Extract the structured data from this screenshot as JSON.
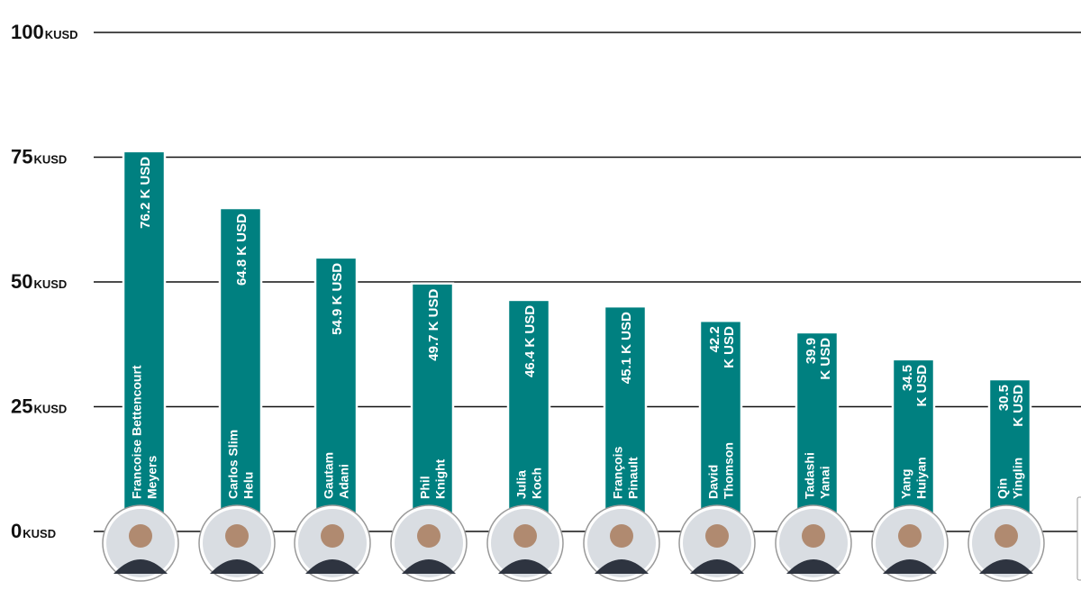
{
  "chart_data": {
    "type": "bar",
    "categories": [
      "Francoise Bettencourt Meyers",
      "Carlos Slim Helu",
      "Gautam Adani",
      "Phil Knight",
      "Julia Koch",
      "François Pinault",
      "David Thomson",
      "Tadashi Yanai",
      "Yang Huiyan",
      "Qin Yinglin"
    ],
    "name_lines": [
      [
        "Francoise Bettencourt",
        "Meyers"
      ],
      [
        "Carlos Slim",
        "Helu"
      ],
      [
        "Gautam",
        "Adani"
      ],
      [
        "Phil",
        "Knight"
      ],
      [
        "Julia",
        "Koch"
      ],
      [
        "François",
        "Pinault"
      ],
      [
        "David",
        "Thomson"
      ],
      [
        "Tadashi",
        "Yanai"
      ],
      [
        "Yang",
        "Huiyan"
      ],
      [
        "Qin",
        "Yinglin"
      ]
    ],
    "values": [
      76.2,
      64.8,
      54.9,
      49.7,
      46.4,
      45.1,
      42.2,
      39.9,
      34.5,
      30.5
    ],
    "value_labels": [
      [
        "76.2 K USD"
      ],
      [
        "64.8 K USD"
      ],
      [
        "54.9 K USD"
      ],
      [
        "49.7 K USD"
      ],
      [
        "46.4 K USD"
      ],
      [
        "45.1 K USD"
      ],
      [
        "42.2",
        "K USD"
      ],
      [
        "39.9",
        "K USD"
      ],
      [
        "34.5",
        "K USD"
      ],
      [
        "30.5",
        "K USD"
      ]
    ],
    "ylim": [
      0,
      100
    ],
    "yticks": [
      0,
      25,
      50,
      75,
      100
    ],
    "ytick_unit": "KUSD",
    "grid": true,
    "bar_color": "#008080",
    "title": "",
    "xlabel": "",
    "ylabel": ""
  },
  "avatar_icons": [
    "portrait-icon",
    "portrait-icon",
    "portrait-icon",
    "portrait-icon",
    "portrait-icon",
    "portrait-icon",
    "portrait-icon",
    "portrait-icon",
    "portrait-icon",
    "portrait-icon"
  ]
}
